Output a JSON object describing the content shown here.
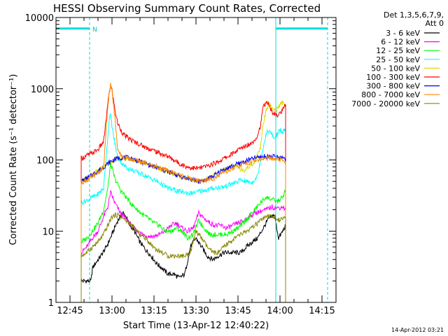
{
  "chart_data": {
    "type": "line",
    "title": "HESSI Observing Summary Count Rates, Corrected",
    "xlabel": "Start Time (13-Apr-12 12:40:22)",
    "ylabel": "Corrected Count Rate (s⁻¹ detector⁻¹)",
    "ylim": [
      1,
      10000
    ],
    "yscale": "log",
    "xlim_minutes_after_1240": [
      0,
      100
    ],
    "grid": false,
    "legend_position": "top-right",
    "legend_header": [
      "Det 1,3,5,6,7,9,",
      "Att 0"
    ],
    "x_ticks": [
      {
        "label": "12:45",
        "t": 5
      },
      {
        "label": "13:00",
        "t": 20
      },
      {
        "label": "13:15",
        "t": 35
      },
      {
        "label": "13:30",
        "t": 50
      },
      {
        "label": "13:45",
        "t": 65
      },
      {
        "label": "14:00",
        "t": 80
      },
      {
        "label": "14:15",
        "t": 95
      }
    ],
    "y_ticks": [
      {
        "label": "1",
        "v": 1
      },
      {
        "label": "10",
        "v": 10
      },
      {
        "label": "100",
        "v": 100
      },
      {
        "label": "1000",
        "v": 1000
      },
      {
        "label": "10000",
        "v": 10000
      }
    ],
    "night_bars": [
      {
        "t0": 0,
        "t1": 12,
        "v": 7000,
        "label": "N"
      },
      {
        "t0": 78.5,
        "t1": 97,
        "v": 7000,
        "label": ""
      }
    ],
    "vlines": [
      {
        "t": 0,
        "style": "solid"
      },
      {
        "t": 12,
        "style": "dashed"
      },
      {
        "t": 78.5,
        "style": "solid"
      },
      {
        "t": 97,
        "style": "dashed"
      }
    ],
    "series": [
      {
        "name": "3 - 6 keV",
        "color": "#000000",
        "x": [
          9,
          12.5,
          13,
          14,
          16,
          18,
          20,
          22,
          24,
          25,
          26,
          28,
          30,
          32,
          34,
          36,
          38,
          40,
          42,
          44,
          46,
          48,
          50,
          52,
          54,
          56,
          58,
          60,
          62,
          64,
          66,
          68,
          70,
          72,
          74,
          76,
          78,
          79.5,
          81,
          82
        ],
        "y": [
          2,
          2,
          3,
          3.5,
          4.5,
          6,
          9,
          14,
          18,
          16,
          13,
          10,
          7,
          5.5,
          4.5,
          3.5,
          3,
          2.5,
          2.5,
          2.2,
          2.5,
          6,
          8,
          6,
          4.5,
          4,
          4.5,
          5,
          5,
          5,
          5,
          6,
          7,
          8,
          11,
          15,
          17,
          8,
          10,
          12
        ]
      },
      {
        "name": "6 - 12 keV",
        "color": "#ff00ff",
        "x": [
          9,
          11,
          13,
          15,
          17,
          18.5,
          19.5,
          21,
          23,
          25,
          27,
          29,
          31,
          33,
          35,
          37,
          39,
          41,
          43,
          45,
          47,
          49,
          51,
          53,
          55,
          57,
          59,
          61,
          63,
          65,
          67,
          69,
          71,
          73,
          75,
          77,
          79,
          81,
          82
        ],
        "y": [
          5,
          6,
          8,
          10,
          16,
          22,
          35,
          25,
          18,
          15,
          12,
          10,
          9,
          8.5,
          8.5,
          9,
          10,
          12,
          13,
          11,
          10,
          11,
          18,
          15,
          13,
          12,
          12,
          11,
          12,
          13,
          14,
          16,
          18,
          19,
          20,
          22,
          21,
          22,
          20
        ]
      },
      {
        "name": "12 - 25 keV",
        "color": "#00ff00",
        "x": [
          9,
          11,
          13,
          15,
          17,
          18.5,
          19.5,
          21,
          23,
          25,
          27,
          29,
          31,
          33,
          35,
          37,
          39,
          41,
          43,
          45,
          47,
          49,
          51,
          53,
          55,
          57,
          59,
          61,
          63,
          65,
          67,
          69,
          71,
          73,
          75,
          77,
          79,
          81,
          82
        ],
        "y": [
          7,
          8,
          10,
          13,
          20,
          40,
          90,
          55,
          38,
          30,
          24,
          20,
          17,
          15,
          13,
          12,
          10,
          10,
          11,
          10,
          8,
          9,
          14,
          11,
          9,
          9,
          9,
          9,
          10,
          11,
          13,
          16,
          20,
          25,
          30,
          28,
          26,
          30,
          38
        ]
      },
      {
        "name": "25 - 50 keV",
        "color": "#00ffff",
        "x": [
          9,
          11,
          13,
          15,
          17,
          18,
          19,
          19.5,
          20.5,
          22,
          24,
          26,
          28,
          30,
          32,
          34,
          36,
          38,
          40,
          42,
          44,
          46,
          48,
          50,
          52,
          54,
          56,
          58,
          60,
          62,
          64,
          66,
          68,
          70,
          72,
          74,
          75,
          76,
          77,
          78,
          79,
          80,
          81,
          82
        ],
        "y": [
          25,
          27,
          30,
          33,
          40,
          120,
          380,
          420,
          220,
          110,
          85,
          75,
          70,
          65,
          60,
          55,
          50,
          45,
          40,
          38,
          36,
          35,
          34,
          35,
          37,
          38,
          40,
          41,
          42,
          45,
          48,
          52,
          50,
          48,
          60,
          150,
          230,
          260,
          230,
          200,
          230,
          260,
          250,
          270
        ]
      },
      {
        "name": "50 - 100 keV",
        "color": "#dddd00",
        "x": [
          9,
          11,
          13,
          15,
          17,
          19,
          21,
          23,
          25,
          27,
          29,
          31,
          33,
          35,
          37,
          39,
          41,
          43,
          45,
          47,
          49,
          51,
          53,
          55,
          57,
          59,
          61,
          63,
          65,
          67,
          69,
          71,
          73,
          74,
          75,
          76,
          77,
          78,
          79,
          80,
          81,
          82
        ],
        "y": [
          50,
          55,
          62,
          70,
          80,
          92,
          102,
          108,
          108,
          104,
          98,
          92,
          86,
          80,
          75,
          70,
          66,
          62,
          58,
          55,
          52,
          50,
          52,
          56,
          62,
          70,
          76,
          80,
          80,
          72,
          80,
          95,
          150,
          320,
          500,
          620,
          560,
          480,
          520,
          600,
          640,
          600
        ]
      },
      {
        "name": "100 - 300 keV",
        "color": "#ff0000",
        "x": [
          9,
          11,
          13,
          15,
          17,
          18,
          19,
          19.5,
          20,
          21,
          22,
          24,
          26,
          28,
          30,
          32,
          34,
          36,
          38,
          40,
          42,
          44,
          46,
          48,
          50,
          52,
          54,
          56,
          58,
          60,
          62,
          64,
          66,
          68,
          70,
          72,
          73,
          74,
          75,
          76,
          77,
          78,
          79,
          80,
          81,
          82
        ],
        "y": [
          105,
          115,
          125,
          140,
          180,
          400,
          900,
          1100,
          950,
          520,
          330,
          230,
          200,
          180,
          165,
          150,
          140,
          130,
          120,
          112,
          100,
          90,
          82,
          78,
          76,
          78,
          82,
          88,
          95,
          105,
          115,
          130,
          145,
          160,
          175,
          220,
          300,
          550,
          650,
          600,
          480,
          450,
          420,
          450,
          500,
          600
        ]
      },
      {
        "name": "300 - 800 keV",
        "color": "#0000ff",
        "x": [
          9,
          11,
          13,
          15,
          17,
          19,
          21,
          23,
          25,
          27,
          29,
          31,
          33,
          35,
          37,
          39,
          41,
          43,
          45,
          47,
          49,
          51,
          53,
          55,
          57,
          59,
          61,
          63,
          65,
          67,
          69,
          71,
          73,
          75,
          77,
          79,
          81,
          82
        ],
        "y": [
          50,
          55,
          62,
          70,
          80,
          92,
          102,
          108,
          108,
          104,
          98,
          92,
          86,
          80,
          75,
          70,
          66,
          62,
          58,
          55,
          52,
          50,
          52,
          56,
          62,
          70,
          76,
          82,
          88,
          94,
          100,
          106,
          110,
          112,
          112,
          110,
          108,
          105
        ]
      },
      {
        "name": "800 - 7000 keV",
        "color": "#ff8800",
        "x": [
          9,
          11,
          13,
          15,
          17,
          18,
          19,
          19.5,
          20,
          21,
          22,
          24,
          26,
          28,
          30,
          32,
          34,
          36,
          38,
          40,
          42,
          44,
          46,
          48,
          50,
          52,
          54,
          56,
          58,
          60,
          62,
          64,
          66,
          68,
          70,
          72,
          74,
          76,
          78,
          80,
          82
        ],
        "y": [
          48,
          52,
          58,
          66,
          78,
          300,
          900,
          1150,
          900,
          400,
          150,
          105,
          104,
          100,
          95,
          90,
          85,
          80,
          75,
          70,
          66,
          62,
          58,
          54,
          52,
          50,
          52,
          55,
          60,
          66,
          72,
          78,
          84,
          90,
          95,
          100,
          104,
          105,
          103,
          100,
          95
        ]
      },
      {
        "name": "7000 - 20000 keV",
        "color": "#888800",
        "x": [
          9,
          11,
          13,
          15,
          17,
          18.5,
          20,
          22,
          24,
          26,
          28,
          30,
          32,
          34,
          36,
          38,
          40,
          42,
          44,
          46,
          48,
          50,
          52,
          54,
          56,
          58,
          60,
          62,
          64,
          66,
          68,
          70,
          72,
          74,
          76,
          78,
          80,
          81,
          82
        ],
        "y": [
          4.5,
          5,
          6,
          7,
          9,
          12,
          16,
          17,
          15,
          13,
          11,
          9,
          8,
          6.5,
          5.5,
          5,
          4.5,
          4.5,
          4.5,
          4.5,
          5,
          10,
          8,
          6,
          5,
          5,
          6,
          7,
          8,
          9,
          10,
          11,
          13,
          15,
          16,
          16,
          14,
          15,
          16
        ]
      }
    ]
  },
  "footer": {
    "timestamp": "14-Apr-2012 03:21"
  }
}
